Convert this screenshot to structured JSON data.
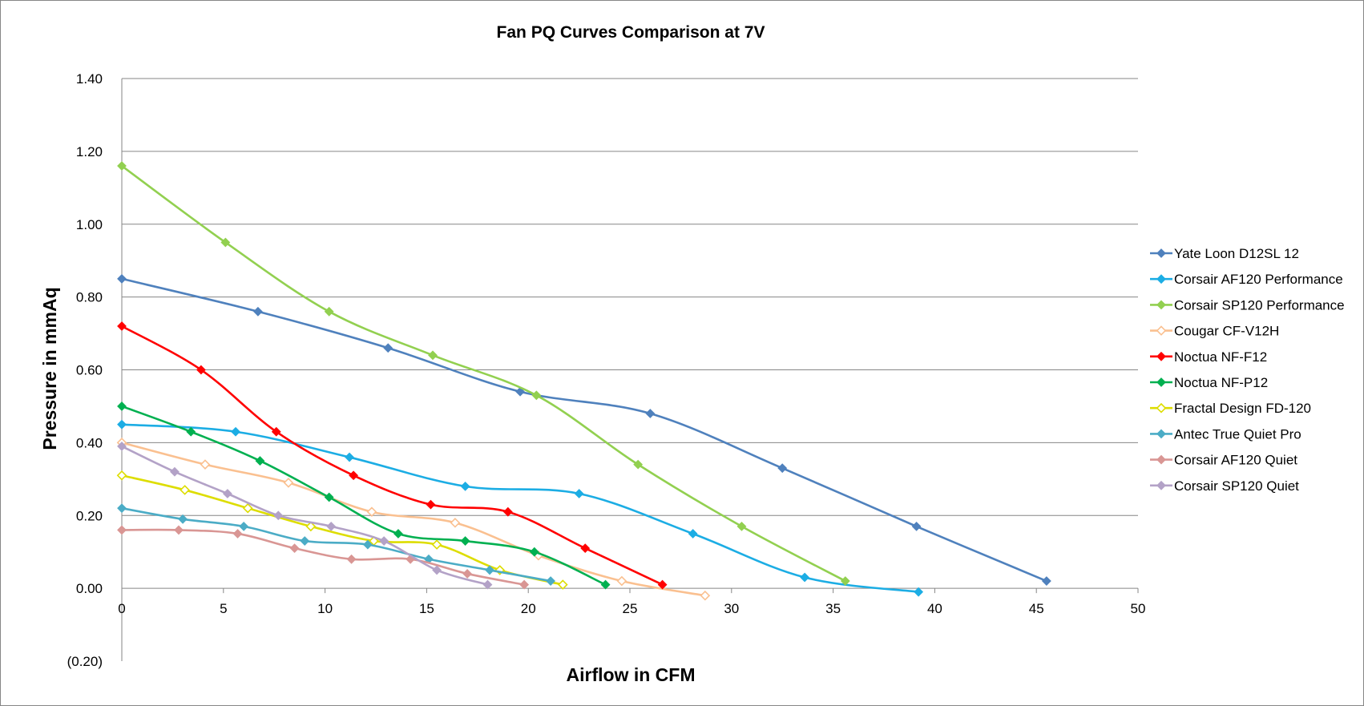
{
  "chart_data": {
    "type": "scatter",
    "title": "Fan PQ Curves Comparison at 7V",
    "xlabel": "Airflow in CFM",
    "ylabel": "Pressure in mmAq",
    "xlim": [
      0,
      50
    ],
    "ylim": [
      -0.2,
      1.4
    ],
    "x_ticks": [
      "0",
      "5",
      "10",
      "15",
      "20",
      "25",
      "30",
      "35",
      "40",
      "45",
      "50"
    ],
    "y_ticks": [
      "(0.20)",
      "0.00",
      "0.20",
      "0.40",
      "0.60",
      "0.80",
      "1.00",
      "1.20",
      "1.40"
    ],
    "negative_tick_color": "#ff0000",
    "grid": "horizontal",
    "legend_position": "right",
    "series": [
      {
        "name": "Yate Loon D12SL 12",
        "color": "#4f81bd",
        "marker": "diamond-filled",
        "points": [
          [
            0,
            0.85
          ],
          [
            6.7,
            0.76
          ],
          [
            13.1,
            0.66
          ],
          [
            19.6,
            0.54
          ],
          [
            26.0,
            0.48
          ],
          [
            32.5,
            0.33
          ],
          [
            39.1,
            0.17
          ],
          [
            45.5,
            0.02
          ]
        ]
      },
      {
        "name": "Corsair AF120 Performance",
        "color": "#1cade4",
        "marker": "diamond-filled",
        "points": [
          [
            0,
            0.45
          ],
          [
            5.6,
            0.43
          ],
          [
            11.2,
            0.36
          ],
          [
            16.9,
            0.28
          ],
          [
            22.5,
            0.26
          ],
          [
            28.1,
            0.15
          ],
          [
            33.6,
            0.03
          ],
          [
            39.2,
            -0.01
          ]
        ]
      },
      {
        "name": "Corsair SP120 Performance",
        "color": "#92d050",
        "marker": "diamond-filled",
        "points": [
          [
            0,
            1.16
          ],
          [
            5.1,
            0.95
          ],
          [
            10.2,
            0.76
          ],
          [
            15.3,
            0.64
          ],
          [
            20.4,
            0.53
          ],
          [
            25.4,
            0.34
          ],
          [
            30.5,
            0.17
          ],
          [
            35.6,
            0.02
          ]
        ]
      },
      {
        "name": "Cougar CF-V12H",
        "color": "#fac090",
        "marker": "diamond-hollow",
        "points": [
          [
            0,
            0.4
          ],
          [
            4.1,
            0.34
          ],
          [
            8.2,
            0.29
          ],
          [
            12.3,
            0.21
          ],
          [
            16.4,
            0.18
          ],
          [
            20.5,
            0.09
          ],
          [
            24.6,
            0.02
          ],
          [
            28.7,
            -0.02
          ]
        ]
      },
      {
        "name": "Noctua NF-F12",
        "color": "#ff0000",
        "marker": "diamond-filled",
        "points": [
          [
            0,
            0.72
          ],
          [
            3.9,
            0.6
          ],
          [
            7.6,
            0.43
          ],
          [
            11.4,
            0.31
          ],
          [
            15.2,
            0.23
          ],
          [
            19.0,
            0.21
          ],
          [
            22.8,
            0.11
          ],
          [
            26.6,
            0.01
          ]
        ]
      },
      {
        "name": "Noctua NF-P12",
        "color": "#00b050",
        "marker": "diamond-filled",
        "points": [
          [
            0,
            0.5
          ],
          [
            3.4,
            0.43
          ],
          [
            6.8,
            0.35
          ],
          [
            10.2,
            0.25
          ],
          [
            13.6,
            0.15
          ],
          [
            16.9,
            0.13
          ],
          [
            20.3,
            0.1
          ],
          [
            23.8,
            0.01
          ]
        ]
      },
      {
        "name": "Fractal Design FD-120",
        "color": "#dddd00",
        "marker": "diamond-hollow",
        "points": [
          [
            0,
            0.31
          ],
          [
            3.1,
            0.27
          ],
          [
            6.2,
            0.22
          ],
          [
            9.3,
            0.17
          ],
          [
            12.4,
            0.13
          ],
          [
            15.5,
            0.12
          ],
          [
            18.6,
            0.05
          ],
          [
            21.7,
            0.01
          ]
        ]
      },
      {
        "name": "Antec True Quiet Pro",
        "color": "#4bacc6",
        "marker": "diamond-filled",
        "points": [
          [
            0,
            0.22
          ],
          [
            3.0,
            0.19
          ],
          [
            6.0,
            0.17
          ],
          [
            9.0,
            0.13
          ],
          [
            12.1,
            0.12
          ],
          [
            15.1,
            0.08
          ],
          [
            18.1,
            0.05
          ],
          [
            21.1,
            0.02
          ]
        ]
      },
      {
        "name": "Corsair AF120 Quiet",
        "color": "#d99694",
        "marker": "diamond-filled",
        "points": [
          [
            0,
            0.16
          ],
          [
            2.8,
            0.16
          ],
          [
            5.7,
            0.15
          ],
          [
            8.5,
            0.11
          ],
          [
            11.3,
            0.08
          ],
          [
            14.2,
            0.08
          ],
          [
            17.0,
            0.04
          ],
          [
            19.8,
            0.01
          ]
        ]
      },
      {
        "name": "Corsair SP120 Quiet",
        "color": "#b3a2c7",
        "marker": "diamond-filled",
        "points": [
          [
            0,
            0.39
          ],
          [
            2.6,
            0.32
          ],
          [
            5.2,
            0.26
          ],
          [
            7.7,
            0.2
          ],
          [
            10.3,
            0.17
          ],
          [
            12.9,
            0.13
          ],
          [
            15.5,
            0.05
          ],
          [
            18.0,
            0.01
          ]
        ]
      }
    ]
  }
}
